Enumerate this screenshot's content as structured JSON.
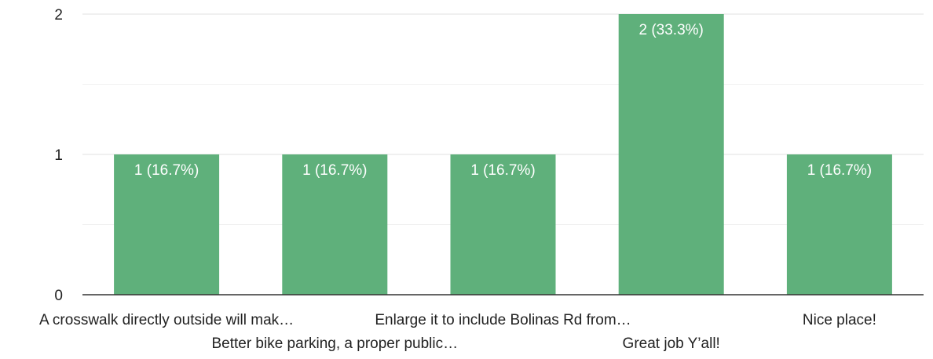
{
  "chart_data": {
    "type": "bar",
    "categories": [
      "A crosswalk directly outside will mak…",
      "Better bike parking, a proper public…",
      "Enlarge it to include Bolinas Rd from…",
      "Great job Y’all!",
      "Nice place!"
    ],
    "values": [
      1,
      1,
      1,
      2,
      1
    ],
    "data_labels": [
      "1 (16.7%)",
      "1 (16.7%)",
      "1 (16.7%)",
      "2 (33.3%)",
      "1 (16.7%)"
    ],
    "y_ticks": [
      "0",
      "1",
      "2"
    ],
    "ylim": [
      0,
      2
    ],
    "minor_gridlines": [
      0.5,
      1.5
    ],
    "grid": true,
    "title": "",
    "xlabel": "",
    "ylabel": "",
    "colors": {
      "bar": "#5fb07b",
      "bar_label": "#ffffff",
      "gridline": "#e0e0e0",
      "minor_gridline": "#f0f0f0",
      "baseline": "#333333",
      "axis_text": "#222222"
    }
  }
}
